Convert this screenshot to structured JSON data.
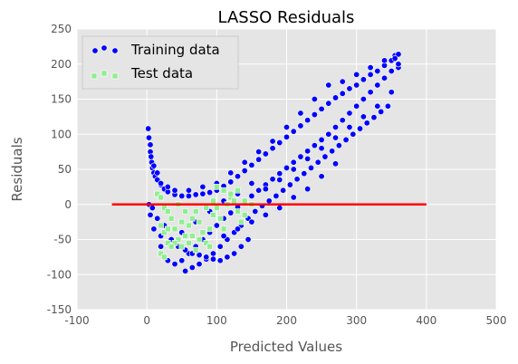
{
  "chart_data": {
    "type": "scatter",
    "title": "LASSO Residuals",
    "xlabel": "Predicted Values",
    "ylabel": "Residuals",
    "xlim": [
      -100,
      500
    ],
    "ylim": [
      -150,
      250
    ],
    "xticks": [
      -100,
      0,
      100,
      200,
      300,
      400,
      500
    ],
    "yticks": [
      -150,
      -100,
      -50,
      0,
      50,
      100,
      150,
      200,
      250
    ],
    "grid": true,
    "legend_position": "top-left",
    "background_color": "#e5e5e5",
    "series": [
      {
        "name": "Training data",
        "marker": "circle",
        "color": "#0000ff",
        "edge_color": "#ffffff",
        "points": [
          [
            2,
            108
          ],
          [
            3,
            95
          ],
          [
            4,
            85
          ],
          [
            5,
            75
          ],
          [
            6,
            68
          ],
          [
            7,
            60
          ],
          [
            8,
            52
          ],
          [
            10,
            45
          ],
          [
            12,
            40
          ],
          [
            15,
            35
          ],
          [
            20,
            28
          ],
          [
            25,
            22
          ],
          [
            30,
            18
          ],
          [
            40,
            14
          ],
          [
            50,
            12
          ],
          [
            60,
            12
          ],
          [
            70,
            14
          ],
          [
            80,
            15
          ],
          [
            90,
            17
          ],
          [
            100,
            20
          ],
          [
            110,
            26
          ],
          [
            120,
            32
          ],
          [
            130,
            40
          ],
          [
            140,
            48
          ],
          [
            150,
            56
          ],
          [
            160,
            64
          ],
          [
            170,
            72
          ],
          [
            180,
            80
          ],
          [
            190,
            88
          ],
          [
            200,
            96
          ],
          [
            210,
            104
          ],
          [
            220,
            112
          ],
          [
            230,
            120
          ],
          [
            240,
            128
          ],
          [
            250,
            136
          ],
          [
            260,
            144
          ],
          [
            270,
            152
          ],
          [
            280,
            158
          ],
          [
            290,
            165
          ],
          [
            300,
            170
          ],
          [
            310,
            178
          ],
          [
            320,
            185
          ],
          [
            330,
            190
          ],
          [
            340,
            198
          ],
          [
            350,
            205
          ],
          [
            355,
            212
          ],
          [
            360,
            214
          ],
          [
            360,
            195
          ],
          [
            350,
            190
          ],
          [
            340,
            180
          ],
          [
            330,
            170
          ],
          [
            320,
            160
          ],
          [
            310,
            150
          ],
          [
            300,
            140
          ],
          [
            290,
            130
          ],
          [
            280,
            120
          ],
          [
            270,
            110
          ],
          [
            260,
            100
          ],
          [
            250,
            92
          ],
          [
            240,
            84
          ],
          [
            230,
            76
          ],
          [
            220,
            68
          ],
          [
            210,
            60
          ],
          [
            200,
            52
          ],
          [
            190,
            44
          ],
          [
            180,
            36
          ],
          [
            170,
            28
          ],
          [
            160,
            20
          ],
          [
            150,
            12
          ],
          [
            140,
            4
          ],
          [
            130,
            -4
          ],
          [
            120,
            -12
          ],
          [
            110,
            -20
          ],
          [
            100,
            -30
          ],
          [
            90,
            -40
          ],
          [
            80,
            -50
          ],
          [
            70,
            -60
          ],
          [
            60,
            -70
          ],
          [
            50,
            -80
          ],
          [
            40,
            -85
          ],
          [
            30,
            -80
          ],
          [
            20,
            -60
          ],
          [
            10,
            -35
          ],
          [
            5,
            -15
          ],
          [
            3,
            0
          ],
          [
            55,
            -95
          ],
          [
            65,
            -90
          ],
          [
            75,
            -85
          ],
          [
            85,
            -78
          ],
          [
            95,
            -70
          ],
          [
            105,
            -60
          ],
          [
            115,
            -50
          ],
          [
            125,
            -40
          ],
          [
            135,
            -30
          ],
          [
            145,
            -20
          ],
          [
            155,
            -10
          ],
          [
            165,
            -2
          ],
          [
            175,
            5
          ],
          [
            185,
            12
          ],
          [
            195,
            20
          ],
          [
            205,
            28
          ],
          [
            215,
            36
          ],
          [
            225,
            44
          ],
          [
            235,
            52
          ],
          [
            245,
            60
          ],
          [
            255,
            68
          ],
          [
            265,
            76
          ],
          [
            275,
            84
          ],
          [
            285,
            92
          ],
          [
            295,
            100
          ],
          [
            305,
            108
          ],
          [
            315,
            116
          ],
          [
            325,
            124
          ],
          [
            335,
            132
          ],
          [
            345,
            140
          ],
          [
            270,
            58
          ],
          [
            250,
            40
          ],
          [
            230,
            22
          ],
          [
            210,
            10
          ],
          [
            190,
            -5
          ],
          [
            170,
            -15
          ],
          [
            150,
            -25
          ],
          [
            130,
            -35
          ],
          [
            110,
            -45
          ],
          [
            260,
            170
          ],
          [
            280,
            175
          ],
          [
            300,
            185
          ],
          [
            320,
            195
          ],
          [
            340,
            205
          ],
          [
            240,
            150
          ],
          [
            220,
            130
          ],
          [
            200,
            110
          ],
          [
            180,
            90
          ],
          [
            160,
            75
          ],
          [
            140,
            60
          ],
          [
            120,
            45
          ],
          [
            100,
            30
          ],
          [
            80,
            25
          ],
          [
            60,
            20
          ],
          [
            40,
            20
          ],
          [
            30,
            25
          ],
          [
            20,
            30
          ],
          [
            15,
            45
          ],
          [
            10,
            55
          ],
          [
            5,
            85
          ],
          [
            25,
            -30
          ],
          [
            35,
            -50
          ],
          [
            45,
            -60
          ],
          [
            55,
            -65
          ],
          [
            65,
            -70
          ],
          [
            75,
            -72
          ],
          [
            85,
            -75
          ],
          [
            95,
            -78
          ],
          [
            105,
            -80
          ],
          [
            115,
            -75
          ],
          [
            125,
            -70
          ],
          [
            135,
            -60
          ],
          [
            145,
            -50
          ],
          [
            310,
            125
          ],
          [
            330,
            140
          ],
          [
            350,
            160
          ],
          [
            290,
            110
          ],
          [
            270,
            95
          ],
          [
            250,
            80
          ],
          [
            230,
            65
          ],
          [
            210,
            50
          ],
          [
            190,
            35
          ],
          [
            170,
            22
          ],
          [
            150,
            30
          ],
          [
            130,
            15
          ],
          [
            110,
            5
          ],
          [
            90,
            -10
          ],
          [
            70,
            -25
          ],
          [
            50,
            -40
          ],
          [
            30,
            -55
          ],
          [
            20,
            -45
          ],
          [
            15,
            -20
          ],
          [
            8,
            -5
          ],
          [
            360,
            200
          ],
          [
            355,
            208
          ]
        ]
      },
      {
        "name": "Test data",
        "marker": "square",
        "color": "#90ee90",
        "edge_color": "#ffffff",
        "points": [
          [
            15,
            15
          ],
          [
            20,
            10
          ],
          [
            25,
            -5
          ],
          [
            30,
            -10
          ],
          [
            20,
            -30
          ],
          [
            25,
            -40
          ],
          [
            30,
            -55
          ],
          [
            20,
            -70
          ],
          [
            25,
            -75
          ],
          [
            35,
            -20
          ],
          [
            40,
            -35
          ],
          [
            45,
            -50
          ],
          [
            50,
            -60
          ],
          [
            55,
            -45
          ],
          [
            60,
            -30
          ],
          [
            65,
            -20
          ],
          [
            70,
            -10
          ],
          [
            75,
            -25
          ],
          [
            80,
            -40
          ],
          [
            85,
            -55
          ],
          [
            90,
            -35
          ],
          [
            95,
            -15
          ],
          [
            100,
            -5
          ],
          [
            105,
            -20
          ],
          [
            110,
            -35
          ],
          [
            115,
            0
          ],
          [
            120,
            10
          ],
          [
            125,
            5
          ],
          [
            130,
            -10
          ],
          [
            135,
            -25
          ],
          [
            140,
            -15
          ],
          [
            100,
            25
          ],
          [
            110,
            20
          ],
          [
            120,
            15
          ],
          [
            60,
            -55
          ],
          [
            70,
            -65
          ],
          [
            40,
            -55
          ],
          [
            50,
            -25
          ],
          [
            30,
            -35
          ],
          [
            45,
            0
          ],
          [
            85,
            -5
          ],
          [
            95,
            5
          ],
          [
            130,
            20
          ],
          [
            140,
            5
          ],
          [
            150,
            0
          ],
          [
            55,
            -10
          ],
          [
            35,
            -60
          ],
          [
            65,
            -45
          ],
          [
            75,
            -50
          ],
          [
            90,
            -60
          ]
        ]
      },
      {
        "name": "",
        "type": "line",
        "color": "#ff0000",
        "points": [
          [
            -50,
            0
          ],
          [
            400,
            0
          ]
        ]
      }
    ]
  }
}
